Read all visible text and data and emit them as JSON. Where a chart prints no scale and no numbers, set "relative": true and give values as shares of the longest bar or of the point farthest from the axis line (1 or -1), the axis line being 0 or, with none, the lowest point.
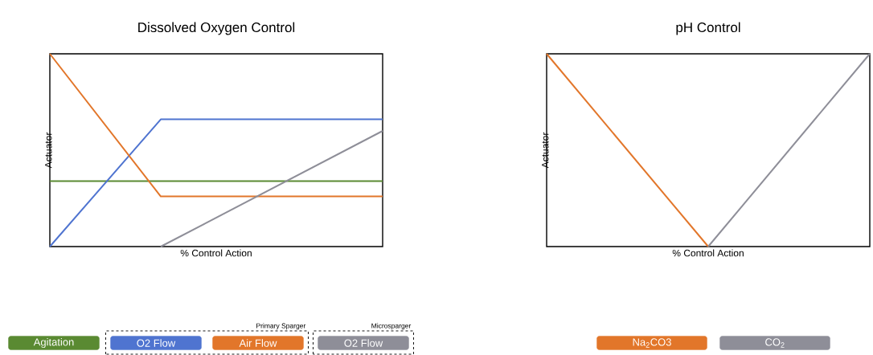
{
  "chart_data": [
    {
      "type": "line",
      "title": "Dissolved Oxygen Control",
      "xlabel": "% Control Action",
      "ylabel": "Actuator",
      "relative": true,
      "categories": [
        null,
        null,
        null,
        null
      ],
      "legend": "bottom",
      "tick_labels": false,
      "annotations": [
        "Primary Sparger",
        "Microsparger"
      ],
      "series": [
        {
          "name": "Agitation",
          "color": "#5a8a32",
          "values": [
            0.34,
            0.34,
            0.34,
            0.34
          ]
        },
        {
          "name": "O2 Flow",
          "color": "#4f74d0",
          "values": [
            0,
            0.66,
            0.66,
            0.66
          ]
        },
        {
          "name": "Air Flow",
          "color": "#e2762a",
          "values": [
            1,
            0.26,
            0.26,
            0.26
          ]
        },
        {
          "name": "O2 Flow",
          "color": "#8e8e98",
          "values": [
            null,
            0,
            0.3,
            0.6
          ]
        }
      ]
    },
    {
      "type": "line",
      "title": "pH Control",
      "xlabel": "% Control Action",
      "ylabel": "Actuator",
      "relative": true,
      "categories": [
        null,
        null,
        null
      ],
      "legend": "bottom",
      "tick_labels": false,
      "series": [
        {
          "name": "Na$_{2}$CO3",
          "color": "#e2762a",
          "values": [
            1,
            0,
            null
          ]
        },
        {
          "name": "CO$_{2}$",
          "color": "#8e8e98",
          "values": [
            null,
            0,
            1
          ]
        }
      ]
    }
  ]
}
